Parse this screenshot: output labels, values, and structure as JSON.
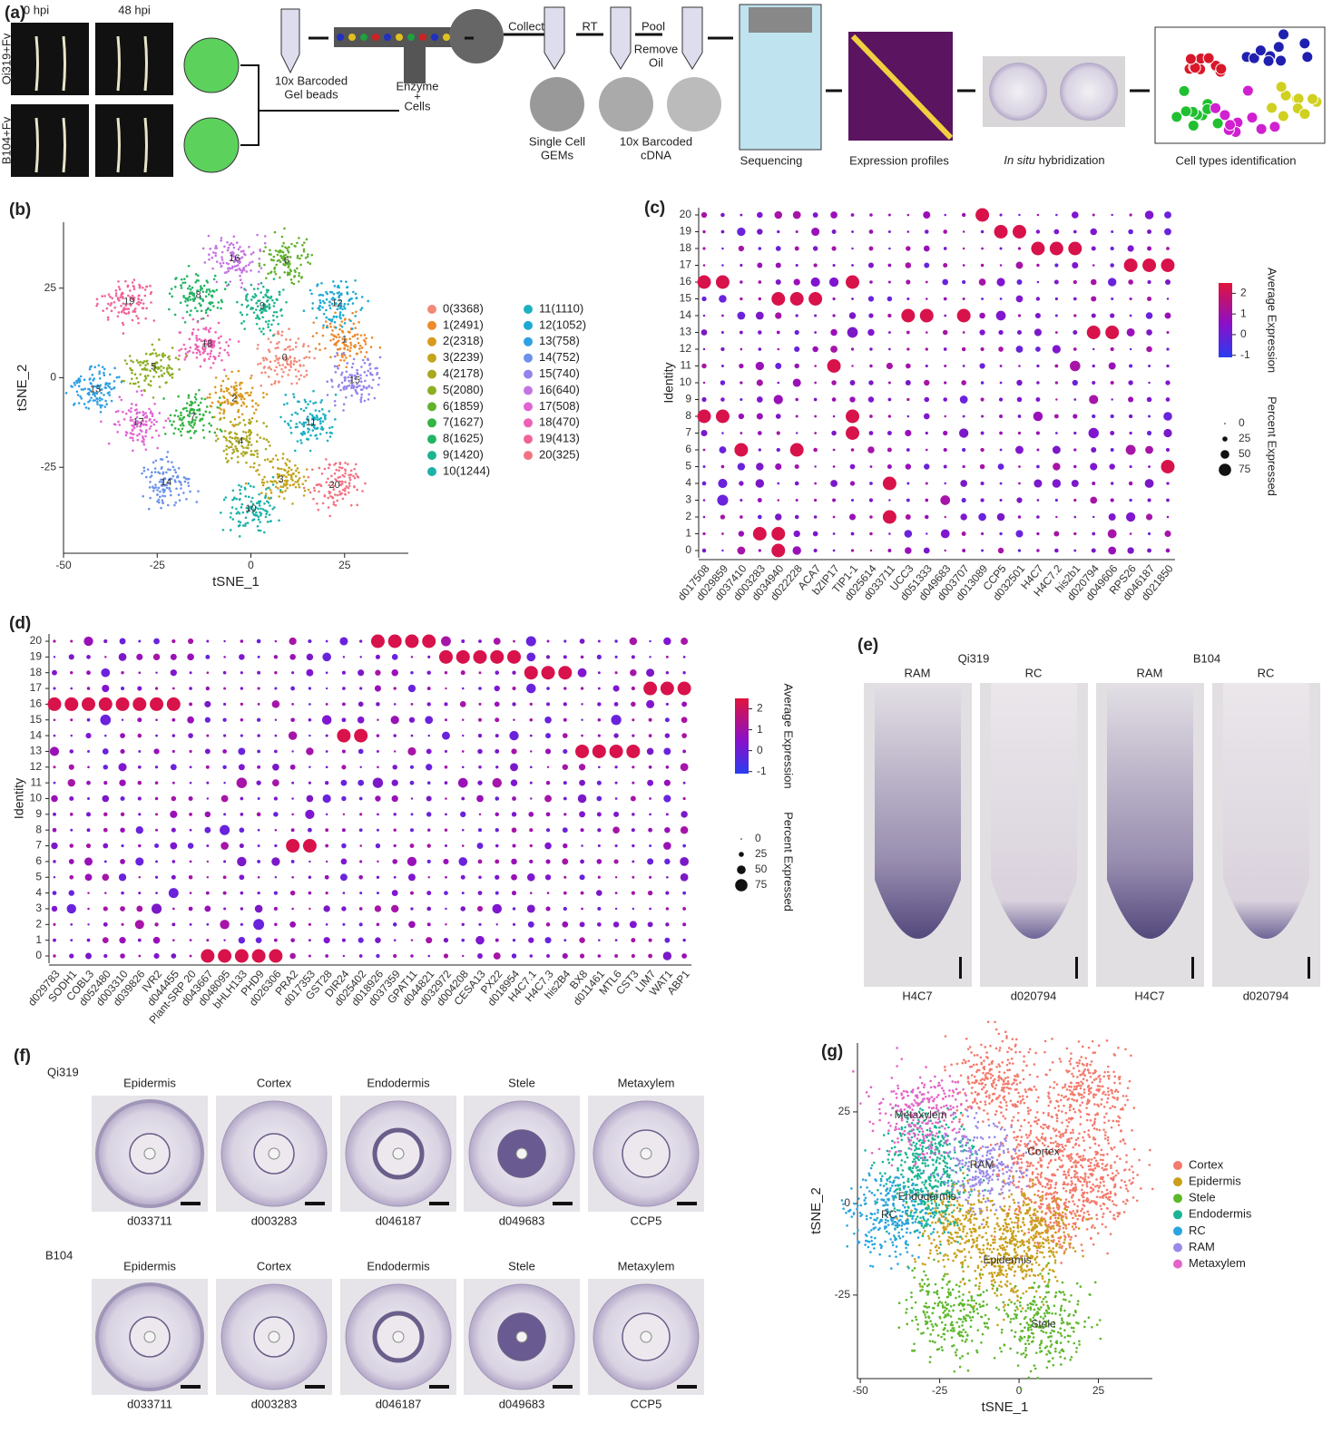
{
  "panel_labels": [
    "(a)",
    "(b)",
    "(c)",
    "(d)",
    "(e)",
    "(f)",
    "(g)"
  ],
  "workflow": {
    "time0": "0 hpi",
    "time48": "48 hpi",
    "row1": "Qi319+Fv",
    "row2": "B104+Fv",
    "gel": [
      "10x Barcoded",
      "Gel beads"
    ],
    "enzyme": [
      "Enzyme",
      "+",
      "Cells"
    ],
    "collect": "Collect",
    "rt": "RT",
    "pool": "Pool",
    "remove": [
      "Remove",
      "Oil"
    ],
    "gems": [
      "Single Cell",
      "GEMs"
    ],
    "cdna": [
      "10x Barcoded",
      "cDNA"
    ],
    "sequencing": "Sequencing",
    "expression": "Expression profiles",
    "insitu": [
      "In situ",
      " hybridization"
    ],
    "celltypes": "Cell types identification"
  },
  "chart_data": [
    {
      "type": "scatter",
      "xlabel": "tSNE_1",
      "ylabel": "tSNE_2",
      "xlim": [
        -50,
        42
      ],
      "ylim": [
        -49,
        43.4
      ],
      "xticks": [
        -50,
        -25,
        0,
        25
      ],
      "yticks": [
        -25,
        0,
        25
      ],
      "series": [
        {
          "name": "0(3368)",
          "label": "0",
          "color": "#f28a78",
          "x": [
            9
          ],
          "y": [
            5.5
          ]
        },
        {
          "name": "1(2491)",
          "label": "1",
          "color": "#ec8a2e",
          "x": [
            25
          ],
          "y": [
            10.6
          ]
        },
        {
          "name": "2(2318)",
          "label": "2",
          "color": "#d89a1e",
          "x": [
            -4.4
          ],
          "y": [
            -5.8
          ]
        },
        {
          "name": "3(2239)",
          "label": "3",
          "color": "#c4a41c",
          "x": [
            8
          ],
          "y": [
            -28.5
          ]
        },
        {
          "name": "4(2178)",
          "label": "4",
          "color": "#aaa820",
          "x": [
            -2.7
          ],
          "y": [
            -17.7
          ]
        },
        {
          "name": "5(2080)",
          "label": "5",
          "color": "#8cae22",
          "x": [
            -26
          ],
          "y": [
            3
          ]
        },
        {
          "name": "6(1859)",
          "label": "6",
          "color": "#62b22e",
          "x": [
            9.5
          ],
          "y": [
            32.6
          ]
        },
        {
          "name": "7(1627)",
          "label": "7",
          "color": "#34b444",
          "x": [
            -15.5
          ],
          "y": [
            -11
          ]
        },
        {
          "name": "8(1625)",
          "label": "8",
          "color": "#22b464",
          "x": [
            -14
          ],
          "y": [
            23
          ]
        },
        {
          "name": "9(1420)",
          "label": "9",
          "color": "#1cb48e",
          "x": [
            3
          ],
          "y": [
            20
          ]
        },
        {
          "name": "10(1244)",
          "label": "10",
          "color": "#1cb2aa",
          "x": [
            0
          ],
          "y": [
            -36.6
          ]
        },
        {
          "name": "11(1110)",
          "label": "11",
          "color": "#1cb0c2",
          "x": [
            16
          ],
          "y": [
            -12.6
          ]
        },
        {
          "name": "12(1052)",
          "label": "12",
          "color": "#1caad4",
          "x": [
            23
          ],
          "y": [
            20.7
          ]
        },
        {
          "name": "13(758)",
          "label": "13",
          "color": "#2ea0e4",
          "x": [
            -41.5
          ],
          "y": [
            -3.3
          ]
        },
        {
          "name": "14(752)",
          "label": "14",
          "color": "#6c92ea",
          "x": [
            -22.6
          ],
          "y": [
            -29.3
          ]
        },
        {
          "name": "15(740)",
          "label": "15",
          "color": "#9484ea",
          "x": [
            27.7
          ],
          "y": [
            -0.8
          ]
        },
        {
          "name": "16(640)",
          "label": "16",
          "color": "#c474e2",
          "x": [
            -4.4
          ],
          "y": [
            33.3
          ]
        },
        {
          "name": "17(508)",
          "label": "17",
          "color": "#e064d2",
          "x": [
            -30
          ],
          "y": [
            -12.4
          ]
        },
        {
          "name": "18(470)",
          "label": "18",
          "color": "#ee62b6",
          "x": [
            -11.7
          ],
          "y": [
            9.3
          ]
        },
        {
          "name": "19(413)",
          "label": "19",
          "color": "#f0649a",
          "x": [
            -32.5
          ],
          "y": [
            21.2
          ]
        },
        {
          "name": "20(325)",
          "label": "20",
          "color": "#f27282",
          "x": [
            22.3
          ],
          "y": [
            -30
          ]
        }
      ]
    },
    {
      "type": "dotplot",
      "ylabel": "Identity",
      "yticks": [
        0,
        1,
        2,
        3,
        4,
        5,
        6,
        7,
        8,
        9,
        10,
        11,
        12,
        13,
        14,
        15,
        16,
        17,
        18,
        19,
        20
      ],
      "categories": [
        "d017508",
        "d029859",
        "d037410",
        "d003283",
        "d034940",
        "d022228",
        "ACA7",
        "bZIP17",
        "TIP1-1",
        "d025614",
        "d033711",
        "UCC3",
        "d051333",
        "d049683",
        "d003707",
        "d013089",
        "CCP5",
        "d032501",
        "H4C7",
        "H4C7.2",
        "his2b1",
        "d020794",
        "d049606",
        "RPS26",
        "d046187",
        "d021850"
      ],
      "high": [
        [
          16,
          8
        ],
        [
          16,
          8
        ],
        [
          6
        ],
        [
          1
        ],
        [
          0,
          1,
          15
        ],
        [
          15,
          6
        ],
        [
          15
        ],
        [
          11
        ],
        [
          16,
          8,
          7
        ],
        [],
        [
          4,
          2
        ],
        [
          14
        ],
        [
          14
        ],
        [],
        [
          14
        ],
        [
          20
        ],
        [
          19
        ],
        [
          19
        ],
        [
          18
        ],
        [
          18
        ],
        [
          18
        ],
        [
          13
        ],
        [
          13
        ],
        [
          17
        ],
        [
          17
        ],
        [
          17,
          5
        ]
      ],
      "high_color": "#d8124a",
      "colorbar": {
        "title": "Average Expression",
        "ticks": [
          2,
          1,
          0,
          -1
        ],
        "lim": [
          -1.1,
          2.5
        ]
      },
      "size_legend": {
        "title": "Percent Expressed",
        "ticks": [
          0,
          25,
          50,
          75
        ]
      }
    },
    {
      "type": "dotplot",
      "ylabel": "Identity",
      "yticks": [
        0,
        1,
        2,
        3,
        4,
        5,
        6,
        7,
        8,
        9,
        10,
        11,
        12,
        13,
        14,
        15,
        16,
        17,
        18,
        19,
        20
      ],
      "categories": [
        "d029783",
        "SODH1",
        "COBL3",
        "d052480",
        "d003310",
        "d039826",
        "IVR2",
        "d044455",
        "Plant-SRP 20",
        "d043667",
        "d048095",
        "bHLH133",
        "PHD9",
        "d026306",
        "PRA2",
        "d017353",
        "GST28",
        "DIR24",
        "d025402",
        "d018926",
        "d037359",
        "GPAT11",
        "d044821",
        "d032972",
        "d004208",
        "CESA13",
        "PX22",
        "d018954",
        "H4C7.1",
        "H4C7.3",
        "his2B4",
        "BX8",
        "d011461",
        "MTL6",
        "CST3",
        "LIM7",
        "WAT1",
        "ABP1"
      ],
      "high": [
        [
          16
        ],
        [
          16
        ],
        [
          16
        ],
        [
          16
        ],
        [
          16
        ],
        [
          16
        ],
        [
          16
        ],
        [
          16
        ],
        [],
        [
          0
        ],
        [
          0
        ],
        [
          0
        ],
        [
          0
        ],
        [
          0
        ],
        [
          7
        ],
        [
          7
        ],
        [],
        [
          14
        ],
        [
          14
        ],
        [
          20
        ],
        [
          20
        ],
        [
          20
        ],
        [
          20
        ],
        [
          19
        ],
        [
          19
        ],
        [
          19
        ],
        [
          19
        ],
        [
          19
        ],
        [
          18
        ],
        [
          18
        ],
        [
          18
        ],
        [
          13
        ],
        [
          13
        ],
        [
          13
        ],
        [
          13
        ],
        [
          17
        ],
        [
          17
        ],
        [
          17
        ]
      ],
      "high_color": "#d8124a",
      "colorbar": {
        "title": "Average Expression",
        "ticks": [
          2,
          1,
          0,
          -1
        ],
        "lim": [
          -1.1,
          2.5
        ]
      },
      "size_legend": {
        "title": "Percent Expressed",
        "ticks": [
          0,
          25,
          50,
          75
        ]
      }
    },
    {
      "type": "scatter",
      "xlabel": "tSNE_1",
      "ylabel": "tSNE_2",
      "xlim": [
        -50.9,
        42
      ],
      "ylim": [
        -47.8,
        43.8
      ],
      "xticks": [
        -50,
        -25,
        0,
        25
      ],
      "yticks": [
        -25,
        0,
        25
      ],
      "map_names": true,
      "series": [
        {
          "name": "Cortex",
          "color": "#f47a6c",
          "x": [
            7.7,
            22,
            -6.6,
            24.8,
            12
          ],
          "y": [
            14,
            31,
            33.7,
            6.7,
            -2
          ]
        },
        {
          "name": "Epidermis",
          "color": "#c9a01a",
          "x": [
            -3.7,
            -18,
            4
          ],
          "y": [
            -15.6,
            -5.7,
            -8
          ]
        },
        {
          "name": "Stele",
          "color": "#5cb82a",
          "x": [
            7.7,
            -22
          ],
          "y": [
            -33,
            -30.5
          ]
        },
        {
          "name": "Endodermis",
          "color": "#1cb494",
          "x": [
            -29,
            -29
          ],
          "y": [
            1.7,
            14
          ]
        },
        {
          "name": "RC",
          "color": "#2aa4de",
          "x": [
            -41
          ],
          "y": [
            -3.2
          ]
        },
        {
          "name": "RAM",
          "color": "#9a8ae6",
          "x": [
            -11.7
          ],
          "y": [
            10.4
          ]
        },
        {
          "name": "Metaxylem",
          "color": "#e464c8",
          "x": [
            -31
          ],
          "y": [
            24
          ]
        }
      ]
    }
  ],
  "insitu_e": {
    "lines": [
      "Qi319",
      "B104"
    ],
    "columns": [
      "RAM",
      "RC",
      "RAM",
      "RC"
    ],
    "genes": [
      "H4C7",
      "d020794",
      "H4C7",
      "d020794"
    ]
  },
  "insitu_f": {
    "rows": [
      "Qi319",
      "B104"
    ],
    "columns": [
      "Epidermis",
      "Cortex",
      "Endodermis",
      "Stele",
      "Metaxylem"
    ],
    "genes": [
      "d033711",
      "d003283",
      "d046187",
      "d049683",
      "CCP5"
    ]
  }
}
